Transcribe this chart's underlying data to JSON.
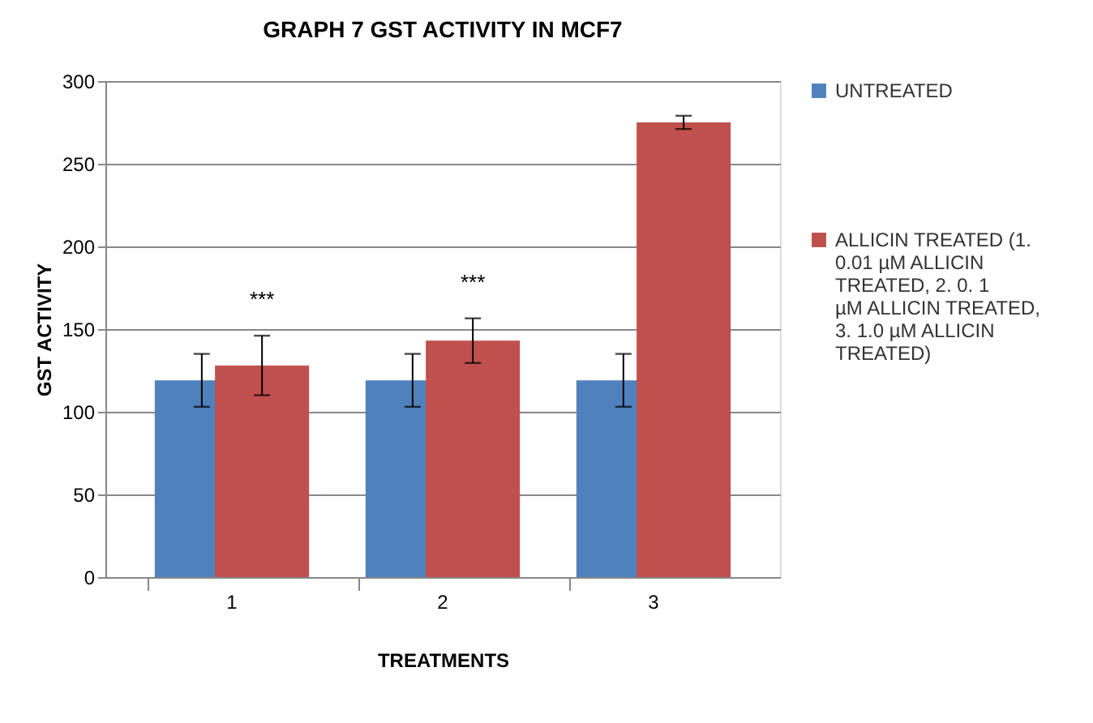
{
  "chart_data": {
    "type": "bar",
    "title": "GRAPH 7    GST ACTIVITY IN MCF7",
    "xlabel": "TREATMENTS",
    "ylabel": "GST ACTIVITY",
    "categories": [
      "1",
      "2",
      "3"
    ],
    "series": [
      {
        "name": "UNTREATED",
        "color": "#4f81bd",
        "values": [
          119,
          119,
          119
        ],
        "errors": [
          16,
          16,
          16
        ]
      },
      {
        "name": "ALLICIN TREATED  (1. 0.01 µM ALLICIN TREATED,  2.  0. 1 µM ALLICIN TREATED,  3. 1.0 µM ALLICIN TREATED)",
        "color": "#c0504d",
        "values": [
          128,
          143,
          275
        ],
        "errors": [
          18,
          13.5,
          4
        ]
      }
    ],
    "annotations": [
      "***",
      "***"
    ],
    "ylim": [
      0,
      300
    ],
    "yticks": [
      0,
      50,
      100,
      150,
      200,
      250,
      300
    ],
    "grid": "y",
    "legend": "right"
  }
}
